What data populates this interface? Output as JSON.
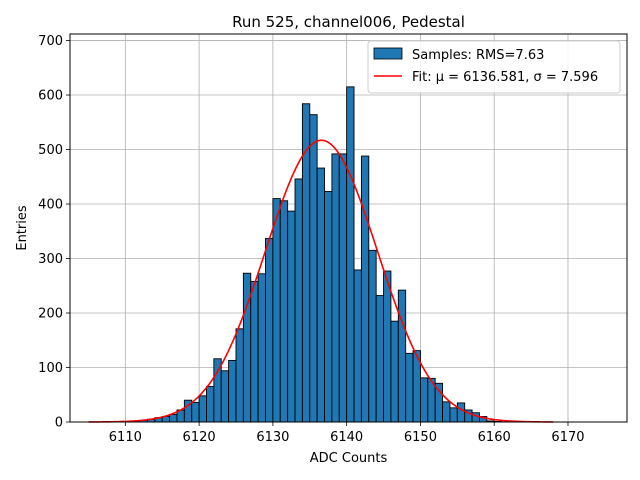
{
  "chart_data": {
    "type": "bar",
    "title": "Run 525, channel006, Pedestal",
    "xlabel": "ADC Counts",
    "ylabel": "Entries",
    "xlim": [
      6102.5,
      6178
    ],
    "ylim": [
      0,
      712
    ],
    "xticks": [
      6110,
      6120,
      6130,
      6140,
      6150,
      6160,
      6170
    ],
    "yticks": [
      0,
      100,
      200,
      300,
      400,
      500,
      600,
      700
    ],
    "grid": true,
    "legend_position": "top-right",
    "bar_color": "#1f77b4",
    "fit_color": "#ff0000",
    "bin_width": 1,
    "histogram": {
      "name": "Samples: RMS=7.63",
      "bin_left_edges": [
        6111,
        6112,
        6113,
        6114,
        6115,
        6116,
        6117,
        6118,
        6119,
        6120,
        6121,
        6122,
        6123,
        6124,
        6125,
        6126,
        6127,
        6128,
        6129,
        6130,
        6131,
        6132,
        6133,
        6134,
        6135,
        6136,
        6137,
        6138,
        6139,
        6140,
        6141,
        6142,
        6143,
        6144,
        6145,
        6146,
        6147,
        6148,
        6149,
        6150,
        6151,
        6152,
        6153,
        6154,
        6155,
        6156,
        6157,
        6158,
        6159,
        6160
      ],
      "counts": [
        2,
        3,
        5,
        8,
        10,
        14,
        22,
        40,
        36,
        48,
        65,
        116,
        94,
        113,
        171,
        273,
        258,
        272,
        337,
        410,
        406,
        387,
        446,
        584,
        564,
        466,
        423,
        492,
        492,
        615,
        279,
        488,
        315,
        232,
        277,
        185,
        242,
        126,
        131,
        81,
        80,
        71,
        37,
        26,
        35,
        22,
        17,
        10,
        2,
        1
      ]
    },
    "fit": {
      "name": "Fit: μ = 6136.581, σ = 7.596",
      "mu": 6136.581,
      "sigma": 7.596,
      "amplitude": 517,
      "x_range": [
        6105,
        6168
      ]
    }
  }
}
